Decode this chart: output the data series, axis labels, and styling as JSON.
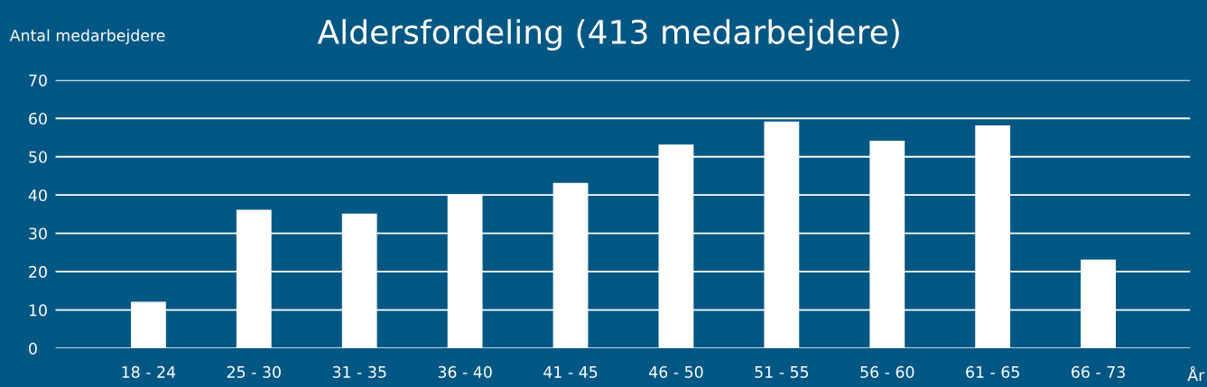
{
  "chart_data": {
    "type": "bar",
    "title": "Aldersfordeling (413 medarbejdere)",
    "ylabel": "Antal medarbejdere",
    "xlabel": "År",
    "categories": [
      "18 - 24",
      "25 - 30",
      "31 - 35",
      "36 - 40",
      "41 - 45",
      "46 - 50",
      "51 - 55",
      "56 - 60",
      "61 - 65",
      "66 - 73"
    ],
    "values": [
      12,
      36,
      35,
      40,
      43,
      53,
      59,
      54,
      58,
      23
    ],
    "color": "#ffffff",
    "ylim": [
      0,
      70
    ],
    "yticks": [
      0,
      10,
      20,
      30,
      40,
      50,
      60,
      70
    ],
    "grid": "y",
    "legend": false
  }
}
